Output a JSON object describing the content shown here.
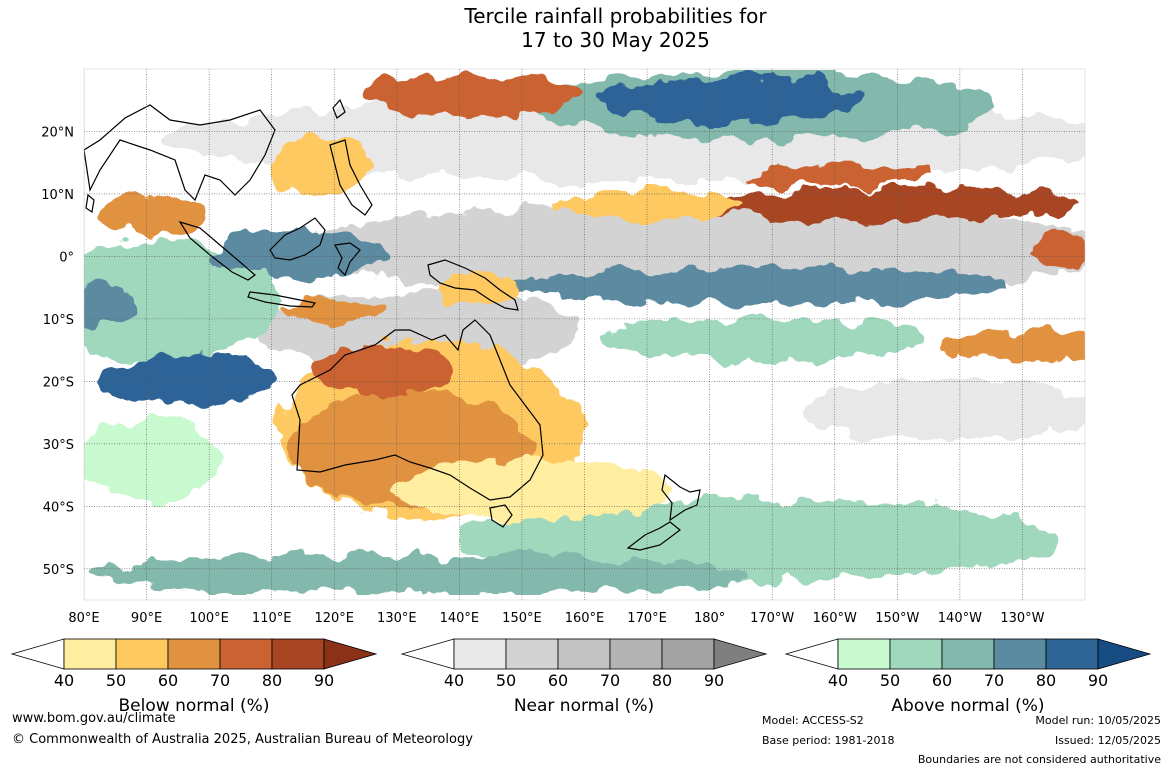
{
  "title": {
    "line1": "Tercile rainfall probabilities for",
    "line2": "17 to 30 May 2025"
  },
  "axes": {
    "lat_labels": [
      "20°N",
      "10°N",
      "0°",
      "10°S",
      "20°S",
      "30°S",
      "40°S",
      "50°S"
    ],
    "lat_values": [
      20,
      10,
      0,
      -10,
      -20,
      -30,
      -40,
      -50
    ],
    "lon_labels": [
      "80°E",
      "90°E",
      "100°E",
      "110°E",
      "120°E",
      "130°E",
      "140°E",
      "150°E",
      "160°E",
      "170°E",
      "180°",
      "170°W",
      "160°W",
      "150°W",
      "140°W",
      "130°W"
    ],
    "lon_values": [
      80,
      90,
      100,
      110,
      120,
      130,
      140,
      150,
      160,
      170,
      180,
      190,
      200,
      210,
      220,
      230
    ],
    "lon_range": [
      80,
      240
    ],
    "lat_range": [
      -55,
      30
    ]
  },
  "colorbars": [
    {
      "name": "below",
      "title": "Below normal (%)",
      "ticks": [
        "40",
        "50",
        "60",
        "70",
        "80",
        "90"
      ],
      "colors": [
        "#ffffff",
        "#ffeda0",
        "#fdc960",
        "#e09241",
        "#cb6232",
        "#a84522",
        "#8a3117"
      ]
    },
    {
      "name": "near",
      "title": "Near normal (%)",
      "ticks": [
        "40",
        "50",
        "60",
        "70",
        "80",
        "90"
      ],
      "colors": [
        "#ffffff",
        "#e8e8e8",
        "#d3d3d3",
        "#c2c2c2",
        "#b3b3b3",
        "#a3a3a3",
        "#7f7f7f"
      ]
    },
    {
      "name": "above",
      "title": "Above normal (%)",
      "ticks": [
        "40",
        "50",
        "60",
        "70",
        "80",
        "90"
      ],
      "colors": [
        "#ffffff",
        "#c9f9ce",
        "#a0d8bd",
        "#83b9ac",
        "#5b8ba1",
        "#2f6497",
        "#164c82"
      ]
    }
  ],
  "footer": {
    "url": "www.bom.gov.au/climate",
    "copyright": "© Commonwealth of Australia 2025, Australian Bureau of Meteorology",
    "model": "Model: ACCESS-S2",
    "base_period": "Base period: 1981-2018",
    "model_run": "Model run: 10/05/2025",
    "issued": "Issued: 12/05/2025",
    "disclaimer": "Boundaries are not considered authoritative"
  },
  "colors": {
    "coastline": "#000000",
    "grid": "#555555"
  }
}
